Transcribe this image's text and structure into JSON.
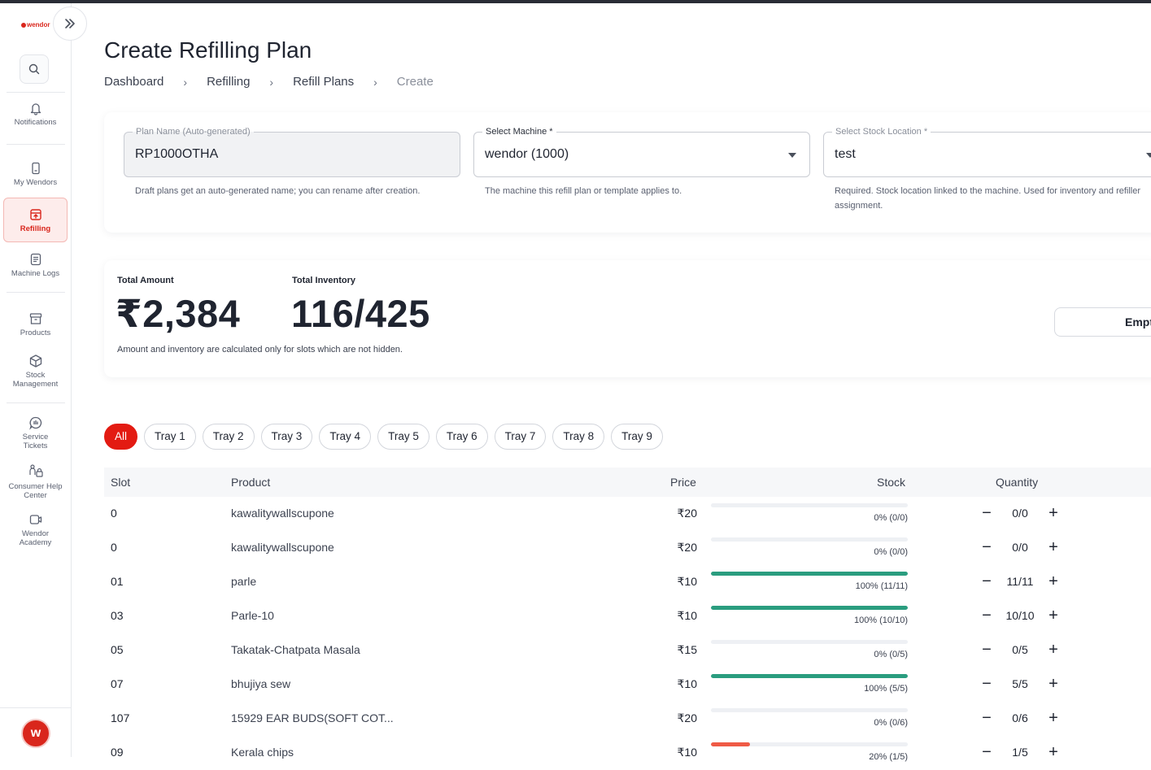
{
  "app": {
    "logo_text": "wendor",
    "accent": "#e31b12"
  },
  "sidebar": {
    "items": [
      {
        "label": "Notifications",
        "icon": "bell-icon"
      },
      {
        "label": "My Wendors",
        "icon": "device-icon"
      },
      {
        "label": "Refilling",
        "icon": "refill-icon",
        "active": true
      },
      {
        "label": "Machine Logs",
        "icon": "log-icon"
      },
      {
        "label": "Products",
        "icon": "archive-icon"
      },
      {
        "label": "Stock Management",
        "icon": "box-icon"
      },
      {
        "label": "Service Tickets",
        "icon": "ticket-icon"
      },
      {
        "label": "Consumer Help Center",
        "icon": "help-icon"
      },
      {
        "label": "Wendor Academy",
        "icon": "academy-icon"
      }
    ],
    "avatar_letter": "w"
  },
  "header": {
    "title": "Create Refilling Plan",
    "breadcrumb": [
      "Dashboard",
      "Refilling",
      "Refill Plans",
      "Create"
    ]
  },
  "form": {
    "plan_name": {
      "label": "Plan Name (Auto-generated)",
      "value": "RP1000OTHA",
      "helper": "Draft plans get an auto-generated name; you can rename after creation."
    },
    "machine": {
      "label": "Select Machine *",
      "value": "wendor (1000)",
      "helper": "The machine this refill plan or template applies to."
    },
    "stock_location": {
      "label": "Select Stock Location *",
      "value": "test",
      "helper": "Required. Stock location linked to the machine. Used for inventory and refiller assignment."
    }
  },
  "summary": {
    "total_amount_label": "Total Amount",
    "total_amount": "₹2,384",
    "total_inventory_label": "Total Inventory",
    "total_inventory": "116/425",
    "note": "Amount and inventory are calculated only for slots which are not hidden.",
    "empty_button": "Empt"
  },
  "tabs": [
    "All",
    "Tray 1",
    "Tray 2",
    "Tray 3",
    "Tray 4",
    "Tray 5",
    "Tray 6",
    "Tray 7",
    "Tray 8",
    "Tray 9"
  ],
  "table": {
    "columns": {
      "slot": "Slot",
      "product": "Product",
      "price": "Price",
      "stock": "Stock",
      "quantity": "Quantity"
    },
    "rows": [
      {
        "slot": "0",
        "product": "kawalitywallscupone",
        "price": "₹20",
        "stock": "0% (0/0)",
        "fill": 0,
        "color": "#2a9d7f",
        "qty": "0/0"
      },
      {
        "slot": "0",
        "product": "kawalitywallscupone",
        "price": "₹20",
        "stock": "0% (0/0)",
        "fill": 0,
        "color": "#2a9d7f",
        "qty": "0/0"
      },
      {
        "slot": "01",
        "product": "parle",
        "price": "₹10",
        "stock": "100% (11/11)",
        "fill": 1,
        "color": "#2a9d7f",
        "qty": "11/11"
      },
      {
        "slot": "03",
        "product": "Parle-10",
        "price": "₹10",
        "stock": "100% (10/10)",
        "fill": 1,
        "color": "#2a9d7f",
        "qty": "10/10"
      },
      {
        "slot": "05",
        "product": "Takatak-Chatpata Masala",
        "price": "₹15",
        "stock": "0% (0/5)",
        "fill": 0,
        "color": "#2a9d7f",
        "qty": "0/5"
      },
      {
        "slot": "07",
        "product": "bhujiya sew",
        "price": "₹10",
        "stock": "100% (5/5)",
        "fill": 1,
        "color": "#2a9d7f",
        "qty": "5/5"
      },
      {
        "slot": "107",
        "product": "15929 EAR BUDS(SOFT COT...",
        "price": "₹20",
        "stock": "0% (0/6)",
        "fill": 0,
        "color": "#2a9d7f",
        "qty": "0/6"
      },
      {
        "slot": "09",
        "product": "Kerala chips",
        "price": "₹10",
        "stock": "20% (1/5)",
        "fill": 0.2,
        "color": "#ef5a45",
        "qty": "1/5"
      }
    ]
  }
}
